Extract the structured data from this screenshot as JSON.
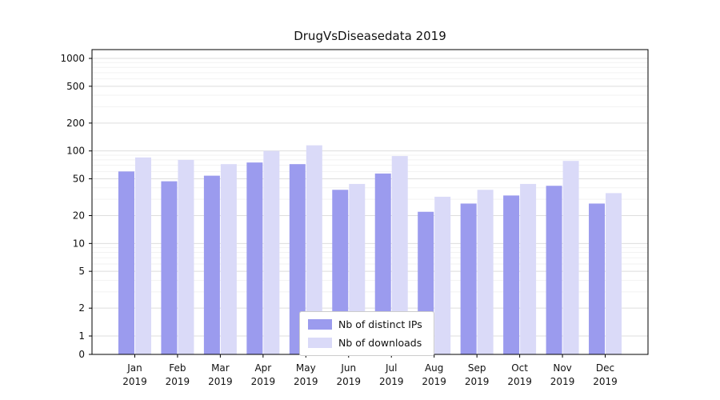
{
  "chart_data": {
    "type": "bar",
    "title": "DrugVsDiseasedata 2019",
    "x_year": "2019",
    "categories": [
      "Jan",
      "Feb",
      "Mar",
      "Apr",
      "May",
      "Jun",
      "Jul",
      "Aug",
      "Sep",
      "Oct",
      "Nov",
      "Dec"
    ],
    "series": [
      {
        "name": "Nb of distinct IPs",
        "color": "#9b9bee",
        "values": [
          60,
          47,
          54,
          75,
          72,
          38,
          57,
          22,
          27,
          33,
          42,
          27
        ]
      },
      {
        "name": "Nb of downloads",
        "color": "#dadaf8",
        "values": [
          85,
          80,
          72,
          100,
          115,
          44,
          88,
          32,
          38,
          44,
          78,
          35
        ]
      }
    ],
    "yticks": [
      0,
      1,
      2,
      5,
      10,
      20,
      50,
      100,
      200,
      500,
      1000
    ],
    "yaxis_scale": "symlog",
    "ylim": [
      0,
      1000
    ],
    "grid": true,
    "legend_position": "lower center",
    "colors": {
      "grid_major": "#dedede",
      "grid_minor": "#f2f2f2",
      "frame": "#000000",
      "text": "#111111"
    }
  }
}
